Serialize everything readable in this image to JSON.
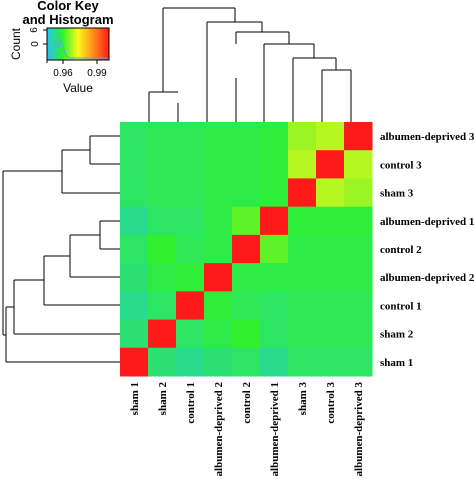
{
  "chart_data": {
    "type": "heatmap",
    "color_key": {
      "title_line1": "Color Key",
      "title_line2": "and Histogram",
      "ylabel": "Count",
      "xlabel": "Value",
      "y_ticks": [
        "0",
        "6"
      ],
      "x_ticks": [
        "0.96",
        "0.99"
      ],
      "range": [
        0.945,
        1.0
      ],
      "colors": [
        "#22c6f0",
        "#2ef02e",
        "#fafa1a",
        "#ff8a1a",
        "#ff1a1a"
      ]
    },
    "columns": [
      "sham 1",
      "sham 2",
      "control 1",
      "albumen-deprived 2",
      "control 2",
      "albumen-deprived 1",
      "sham 3",
      "control 3",
      "albumen-deprived 3"
    ],
    "rows": [
      "albumen-deprived 3",
      "control 3",
      "sham 3",
      "albumen-deprived 1",
      "control 2",
      "albumen-deprived 2",
      "control 1",
      "sham 2",
      "sham 1"
    ],
    "values": [
      [
        0.955,
        0.956,
        0.956,
        0.957,
        0.957,
        0.958,
        0.966,
        0.968,
        1.0
      ],
      [
        0.955,
        0.956,
        0.956,
        0.957,
        0.957,
        0.958,
        0.968,
        1.0,
        0.968
      ],
      [
        0.955,
        0.956,
        0.956,
        0.957,
        0.957,
        0.958,
        1.0,
        0.968,
        0.966
      ],
      [
        0.952,
        0.955,
        0.955,
        0.957,
        0.962,
        1.0,
        0.958,
        0.958,
        0.958
      ],
      [
        0.955,
        0.959,
        0.956,
        0.957,
        1.0,
        0.962,
        0.957,
        0.957,
        0.957
      ],
      [
        0.954,
        0.957,
        0.958,
        1.0,
        0.957,
        0.957,
        0.957,
        0.957,
        0.957
      ],
      [
        0.952,
        0.955,
        1.0,
        0.958,
        0.956,
        0.955,
        0.956,
        0.956,
        0.956
      ],
      [
        0.954,
        1.0,
        0.955,
        0.957,
        0.959,
        0.955,
        0.956,
        0.956,
        0.956
      ],
      [
        1.0,
        0.954,
        0.952,
        0.954,
        0.955,
        0.952,
        0.955,
        0.955,
        0.955
      ]
    ],
    "row_dendrogram": [
      {
        "merge": [
          0,
          1
        ],
        "height": 0.3
      },
      {
        "merge": [
          -1,
          2
        ],
        "height": 0.45
      },
      {
        "merge": [
          3,
          4
        ],
        "height": 0.55
      },
      {
        "merge": [
          -3,
          5
        ],
        "height": 0.68
      },
      {
        "merge": [
          -4,
          6
        ],
        "height": 0.85
      },
      {
        "merge": [
          -2,
          -5
        ],
        "height": 0.95
      },
      {
        "merge": [
          7,
          -6
        ],
        "height": 0.98
      },
      {
        "merge": [
          8,
          -7
        ],
        "height": 1.0
      }
    ]
  }
}
